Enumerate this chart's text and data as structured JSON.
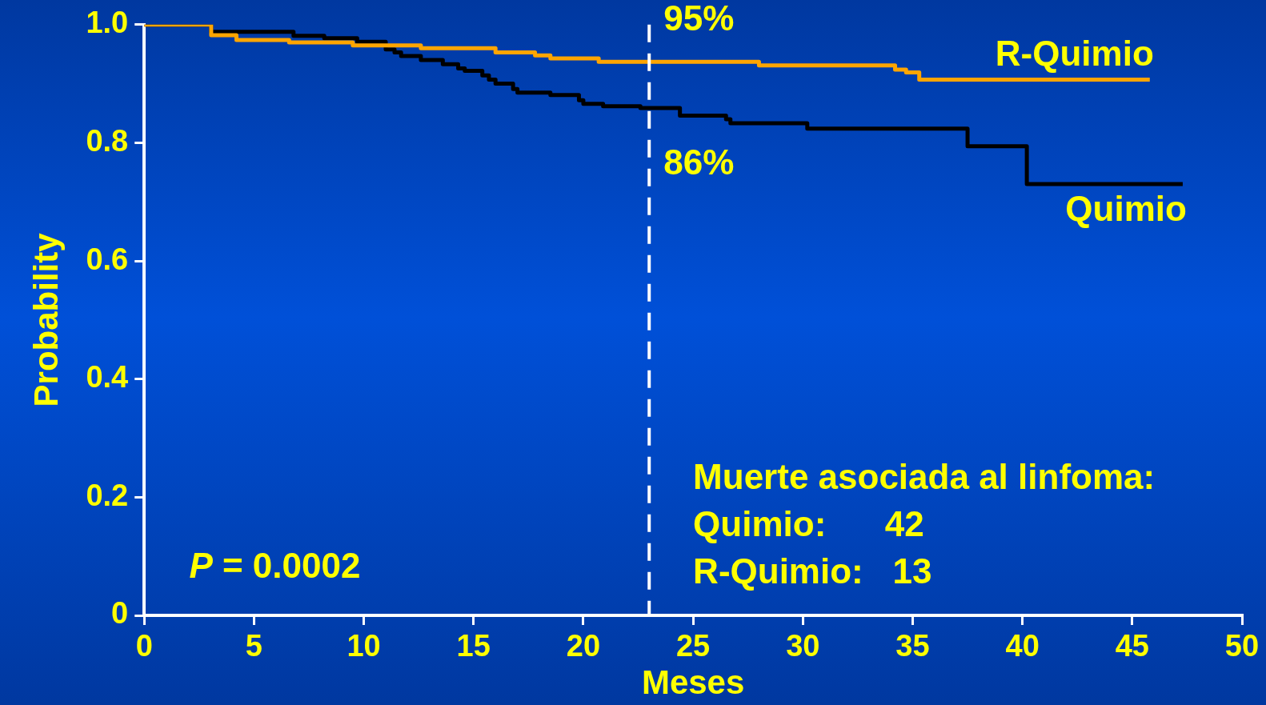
{
  "chart_data": {
    "type": "step",
    "xlabel": "Meses",
    "ylabel": "Probability",
    "xlim": [
      0,
      50
    ],
    "xticks": [
      0,
      5,
      10,
      15,
      20,
      25,
      30,
      35,
      40,
      45,
      50
    ],
    "ylim": [
      0,
      1
    ],
    "yticks": [
      {
        "value": 0,
        "label": "0"
      },
      0.2,
      0.4,
      0.6,
      0.8,
      {
        "value": 1,
        "label": "1.0"
      }
    ],
    "grid": false,
    "legend": false,
    "marker": "none",
    "line_style": "solid",
    "series": [
      {
        "name": "R-Quimio",
        "color": "#ffa500",
        "x": [
          0,
          3.05,
          4.2,
          6.6,
          9.5,
          12.6,
          16.0,
          17.8,
          18.5,
          20.7,
          28.0,
          34.2,
          34.7,
          35.3,
          45.8
        ],
        "values": [
          1.0,
          0.982,
          0.974,
          0.97,
          0.965,
          0.96,
          0.953,
          0.948,
          0.943,
          0.937,
          0.931,
          0.924,
          0.919,
          0.907,
          0.907
        ]
      },
      {
        "name": "Quimio",
        "color": "#000000",
        "x": [
          0,
          3.05,
          6.8,
          8.2,
          9.7,
          11.0,
          11.4,
          11.7,
          12.6,
          13.6,
          14.3,
          14.6,
          15.4,
          15.7,
          16.0,
          16.8,
          17.0,
          18.5,
          19.8,
          20.0,
          20.9,
          22.6,
          24.4,
          26.5,
          26.7,
          30.2,
          37.5,
          40.2,
          47.3
        ],
        "values": [
          1.0,
          0.988,
          0.981,
          0.977,
          0.971,
          0.958,
          0.953,
          0.947,
          0.94,
          0.933,
          0.926,
          0.922,
          0.914,
          0.907,
          0.9,
          0.891,
          0.885,
          0.881,
          0.872,
          0.866,
          0.862,
          0.859,
          0.846,
          0.84,
          0.833,
          0.824,
          0.794,
          0.73,
          0.73
        ]
      }
    ],
    "ref_lines": [
      {
        "axis": "x",
        "value": 23,
        "color": "#ffffff",
        "line_style": "dashed"
      }
    ],
    "annotations": [
      {
        "text": "95%",
        "x": 23,
        "y": 0.95
      },
      {
        "text": "86%",
        "x": 23,
        "y": 0.86
      },
      "P = 0.0002",
      "Muerte asociada al linfoma:",
      "Quimio:      42",
      "R-Quimio:   13"
    ]
  }
}
